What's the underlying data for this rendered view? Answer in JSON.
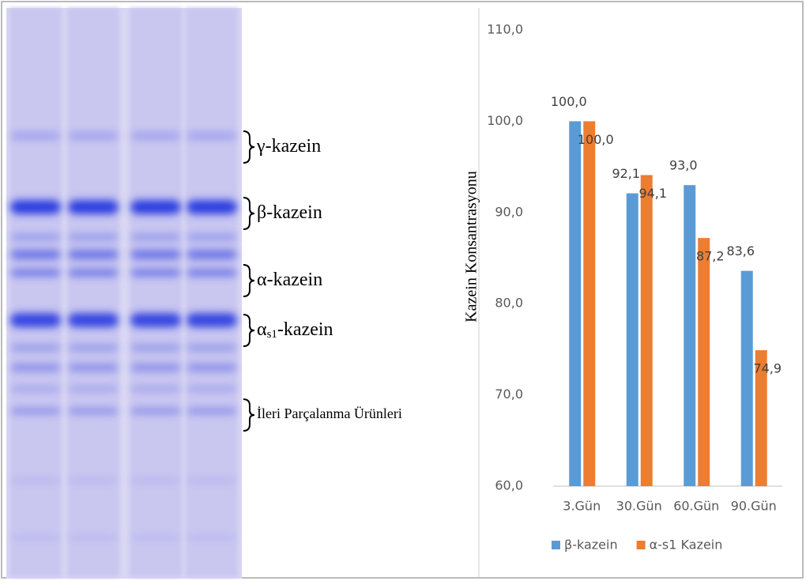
{
  "gel": {
    "labels": [
      {
        "text": "γ-kazein"
      },
      {
        "text": "β-kazein"
      },
      {
        "text": "α-kazein"
      },
      {
        "text": "α",
        "sub": "s1",
        "rest": "-kazein"
      },
      {
        "text": "İleri Parçalanma Ürünleri"
      }
    ]
  },
  "chart_data": {
    "type": "bar",
    "y_label": "Kazein Konsantrasyonu",
    "categories": [
      "3.Gün",
      "30.Gün",
      "60.Gün",
      "90.Gün"
    ],
    "series": [
      {
        "name": "β-kazein",
        "color": "#5b9bd5",
        "values": [
          100.0,
          92.1,
          93.0,
          83.6
        ],
        "value_labels": [
          "100,0",
          "92,1",
          "93,0",
          "83,6"
        ]
      },
      {
        "name": "α-s1 Kazein",
        "color": "#ed7d31",
        "values": [
          100.0,
          94.1,
          87.2,
          74.9
        ],
        "value_labels": [
          "100,0",
          "94,1",
          "87,2",
          "74,9"
        ]
      }
    ],
    "ylim": [
      60,
      110
    ],
    "yticks": [
      {
        "value": 60,
        "label": "60,0"
      },
      {
        "value": 70,
        "label": "70,0"
      },
      {
        "value": 80,
        "label": "80,0"
      },
      {
        "value": 90,
        "label": "90,0"
      },
      {
        "value": 100,
        "label": "100,0"
      },
      {
        "value": 110,
        "label": "110,0"
      }
    ],
    "grid": false,
    "legend": "bottom"
  }
}
